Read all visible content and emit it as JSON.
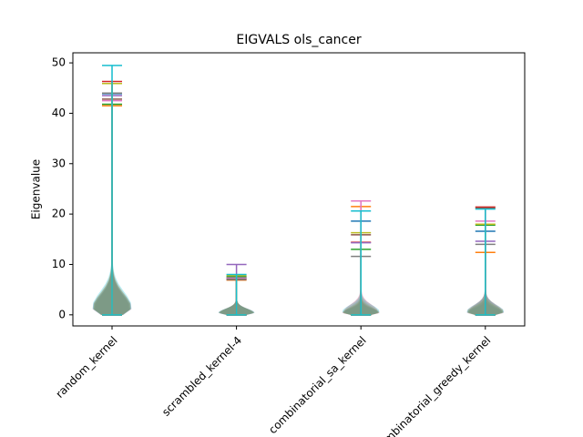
{
  "chart_data": {
    "type": "violin",
    "title": "EIGVALS ols_cancer",
    "y_label": "Eigenvalue",
    "categories": [
      "random_kernel",
      "scrambled_kernel-4",
      "combinatorial_sa_kernel",
      "combinatorial_greedy_kernel"
    ],
    "series": [
      {
        "color": "#1f77b4",
        "max": [
          43.9,
          7.4,
          18.6,
          16.6
        ],
        "min": [
          0,
          0,
          0,
          0
        ]
      },
      {
        "color": "#ff7f0e",
        "max": [
          41.5,
          6.9,
          21.5,
          12.4
        ],
        "min": [
          0,
          0,
          0,
          0
        ]
      },
      {
        "color": "#2ca02c",
        "max": [
          41.8,
          7.6,
          13.0,
          17.8
        ],
        "min": [
          0,
          0,
          0,
          0
        ]
      },
      {
        "color": "#d62728",
        "max": [
          46.3,
          7.2,
          14.4,
          21.4
        ],
        "min": [
          0,
          0,
          0,
          0
        ]
      },
      {
        "color": "#9467bd",
        "max": [
          43.5,
          10.0,
          14.3,
          14.6
        ],
        "min": [
          0,
          0,
          0,
          0
        ]
      },
      {
        "color": "#8c564b",
        "max": [
          42.8,
          7.0,
          15.9,
          21.2
        ],
        "min": [
          0,
          0,
          0,
          0
        ]
      },
      {
        "color": "#e377c2",
        "max": [
          42.5,
          7.3,
          22.6,
          18.6
        ],
        "min": [
          0,
          0,
          0,
          0
        ]
      },
      {
        "color": "#7f7f7f",
        "max": [
          44.0,
          7.1,
          11.6,
          14.0
        ],
        "min": [
          0,
          0,
          0,
          0
        ]
      },
      {
        "color": "#bcbd22",
        "max": [
          45.9,
          7.8,
          16.3,
          18.0
        ],
        "min": [
          0,
          0,
          0,
          0
        ]
      },
      {
        "color": "#17becf",
        "max": [
          49.5,
          8.0,
          20.6,
          21.0
        ],
        "min": [
          0,
          0,
          0,
          0
        ]
      }
    ],
    "ylim": [
      -2.2,
      52
    ],
    "yticks": [
      0,
      10,
      20,
      30,
      40,
      50
    ]
  }
}
